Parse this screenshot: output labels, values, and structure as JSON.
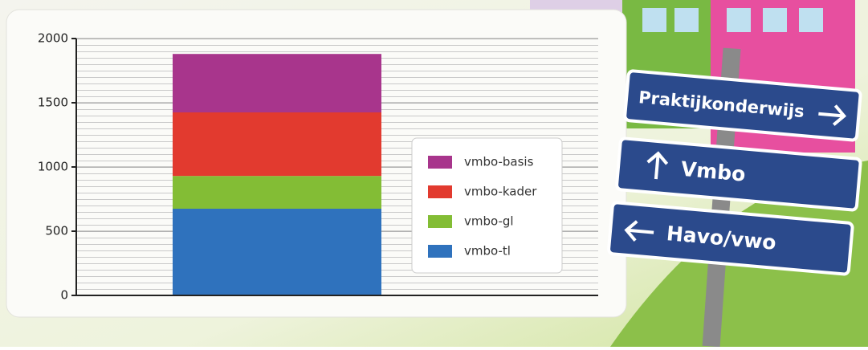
{
  "chart_data": {
    "type": "stacked_bar",
    "categories": [
      null
    ],
    "series": [
      {
        "name": "vmbo-tl",
        "color": "#2f72bd",
        "values": [
          675
        ]
      },
      {
        "name": "vmbo-gl",
        "color": "#83bd35",
        "values": [
          255
        ]
      },
      {
        "name": "vmbo-kader",
        "color": "#e23a2f",
        "values": [
          495
        ]
      },
      {
        "name": "vmbo-basis",
        "color": "#a8358c",
        "values": [
          455
        ]
      }
    ],
    "ylim": [
      0,
      2000
    ],
    "yticks": [
      0,
      500,
      1000,
      1500,
      2000
    ],
    "grid": true,
    "legend": "right"
  },
  "signs": [
    "Praktijkonderwijs",
    "Vmbo",
    "Havo/vwo"
  ]
}
